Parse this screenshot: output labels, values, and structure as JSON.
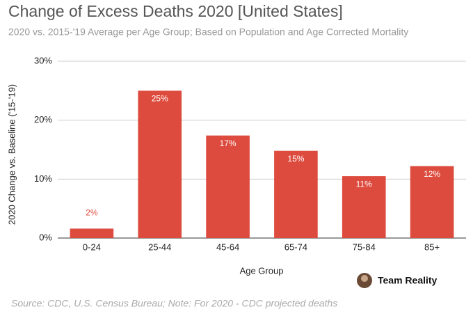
{
  "chart_data": {
    "type": "bar",
    "title": "Change of Excess Deaths 2020 [United States]",
    "subtitle": "2020 vs. 2015-'19 Average per Age Group; Based on Population and Age Corrected Mortality",
    "x_label": "Age Group",
    "y_label": "2020 Change vs. Baseline ('15-'19)",
    "categories": [
      "0-24",
      "25-44",
      "45-64",
      "65-74",
      "75-84",
      "85+"
    ],
    "values": [
      1.6,
      25.0,
      17.4,
      14.8,
      10.5,
      12.2
    ],
    "value_labels": [
      "2%",
      "25%",
      "17%",
      "15%",
      "11%",
      "12%"
    ],
    "color": "#dd4b3e",
    "ylim": [
      0,
      30
    ],
    "yticks": [
      {
        "value": 0,
        "label": "0%"
      },
      {
        "value": 10,
        "label": "10%"
      },
      {
        "value": 20,
        "label": "20%"
      },
      {
        "value": 30,
        "label": "30%"
      }
    ],
    "grid": true,
    "logo_text": "Team Reality",
    "source": "Source: CDC, U.S. Census Bureau; Note: For 2020 - CDC projected deaths"
  }
}
